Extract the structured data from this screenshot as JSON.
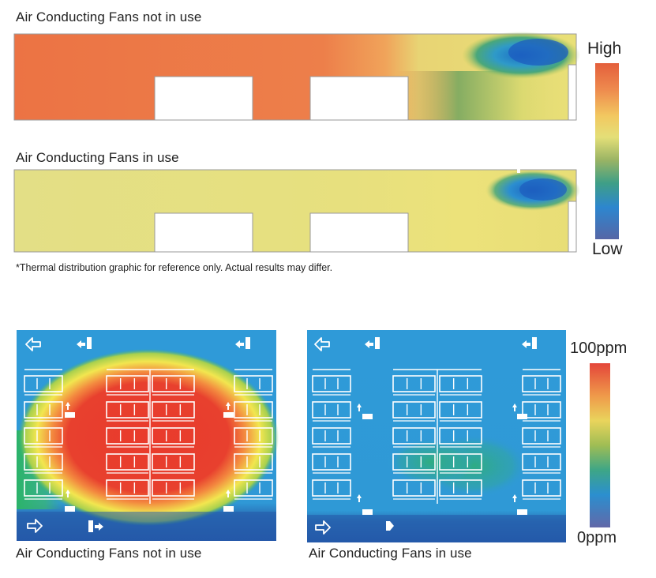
{
  "thermal": {
    "title_off": "Air Conducting Fans not in use",
    "title_on": "Air Conducting Fans in use",
    "legend_high": "High",
    "legend_low": "Low",
    "footnote": "*Thermal distribution graphic for reference only. Actual results may differ."
  },
  "ppm": {
    "caption_off": "Air Conducting Fans not in use",
    "caption_on": "Air Conducting Fans in use",
    "legend_top": "100ppm",
    "legend_bottom": "0ppm"
  },
  "colors": {
    "hot_orange": "#ec7a45",
    "warm_yellow": "#e6e07a",
    "cool_blue": "#2f8fd0",
    "deep_blue": "#1a4fae",
    "ppm_red": "#e8392b",
    "ppm_blue": "#2f9ad8"
  },
  "icons": {
    "exhaust_arrow": "left-arrow-outline-icon",
    "intake_arrow": "right-arrow-outline-icon",
    "fan_unit": "fan-unit-icon"
  }
}
